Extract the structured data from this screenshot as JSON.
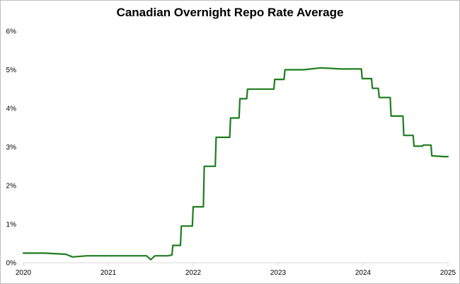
{
  "chart_data": {
    "type": "line",
    "title": "Canadian Overnight Repo Rate Average",
    "xlabel": "",
    "ylabel": "",
    "xlim": [
      2020.0,
      2025.0
    ],
    "ylim": [
      0,
      6
    ],
    "y_ticks": [
      "0%",
      "1%",
      "2%",
      "3%",
      "4%",
      "5%",
      "6%"
    ],
    "x_ticks": [
      "2020",
      "2021",
      "2022",
      "2023",
      "2024",
      "2025"
    ],
    "grid": false,
    "legend": "none",
    "line_color": "#1e7d1e",
    "series": [
      {
        "x": [
          2020.0,
          2020.25,
          2020.5,
          2020.58,
          2020.75,
          2021.0,
          2021.25,
          2021.45,
          2021.5,
          2021.55,
          2021.7,
          2021.75,
          2021.76,
          2021.85,
          2021.86,
          2021.99,
          2022.0,
          2022.12,
          2022.13,
          2022.26,
          2022.27,
          2022.43,
          2022.44,
          2022.54,
          2022.55,
          2022.63,
          2022.64,
          2022.81,
          2022.82,
          2022.95,
          2022.96,
          2023.07,
          2023.08,
          2023.3,
          2023.5,
          2023.75,
          2023.98,
          2023.99,
          2024.1,
          2024.11,
          2024.18,
          2024.19,
          2024.32,
          2024.33,
          2024.47,
          2024.48,
          2024.59,
          2024.6,
          2024.7,
          2024.71,
          2024.8,
          2024.81,
          2024.95,
          2025.0
        ],
        "values": [
          0.25,
          0.25,
          0.22,
          0.15,
          0.18,
          0.18,
          0.18,
          0.18,
          0.08,
          0.18,
          0.18,
          0.2,
          0.45,
          0.45,
          0.95,
          0.95,
          1.45,
          1.45,
          2.5,
          2.5,
          3.25,
          3.25,
          3.75,
          3.75,
          4.25,
          4.25,
          4.5,
          4.5,
          4.5,
          4.5,
          4.75,
          4.75,
          5.0,
          5.0,
          5.05,
          5.02,
          5.02,
          4.77,
          4.77,
          4.52,
          4.52,
          4.28,
          4.28,
          3.8,
          3.8,
          3.3,
          3.3,
          3.02,
          3.02,
          3.05,
          3.05,
          2.77,
          2.75,
          2.75
        ]
      }
    ]
  }
}
